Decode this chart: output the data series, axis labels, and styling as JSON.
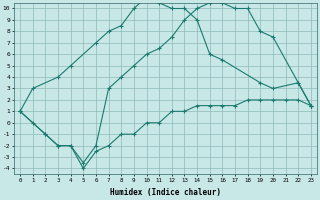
{
  "xlabel": "Humidex (Indice chaleur)",
  "bg_color": "#c8e8e8",
  "grid_color": "#90b8b8",
  "line_color": "#1a7a6e",
  "line1_x": [
    0,
    1,
    2,
    3,
    4,
    5,
    6,
    7,
    8,
    9,
    10,
    11,
    12,
    13,
    14,
    15,
    16,
    17,
    18,
    19,
    20,
    21,
    22,
    23
  ],
  "line1_y": [
    1,
    0,
    -1,
    -2,
    -2,
    -4,
    -2.5,
    -2,
    -1,
    -1,
    0,
    0,
    1,
    1,
    1.5,
    1.5,
    1.5,
    1.5,
    2,
    2,
    2,
    2,
    2,
    1.5
  ],
  "line2_x": [
    0,
    1,
    3,
    4,
    6,
    7,
    8,
    9,
    10,
    11,
    12,
    13,
    14,
    15,
    16,
    19,
    20,
    22,
    23
  ],
  "line2_y": [
    1,
    3,
    4,
    5,
    7,
    8,
    8.5,
    10,
    11,
    10.5,
    10,
    10,
    9,
    6,
    5.5,
    3.5,
    3,
    3.5,
    1.5
  ],
  "line3_x": [
    0,
    2,
    3,
    4,
    5,
    6,
    7,
    8,
    9,
    10,
    11,
    12,
    13,
    14,
    15,
    16,
    17,
    18,
    19,
    20,
    22,
    23
  ],
  "line3_y": [
    1,
    -1,
    -2,
    -2,
    -3.5,
    -2,
    3,
    4,
    5,
    6,
    6.5,
    7.5,
    9,
    10,
    10.5,
    10.5,
    10,
    10,
    8,
    7.5,
    3.5,
    1.5
  ],
  "xlim": [
    -0.5,
    23.5
  ],
  "ylim": [
    -4.5,
    10.5
  ],
  "xticks": [
    0,
    1,
    2,
    3,
    4,
    5,
    6,
    7,
    8,
    9,
    10,
    11,
    12,
    13,
    14,
    15,
    16,
    17,
    18,
    19,
    20,
    21,
    22,
    23
  ],
  "yticks": [
    -4,
    -3,
    -2,
    -1,
    0,
    1,
    2,
    3,
    4,
    5,
    6,
    7,
    8,
    9,
    10
  ]
}
